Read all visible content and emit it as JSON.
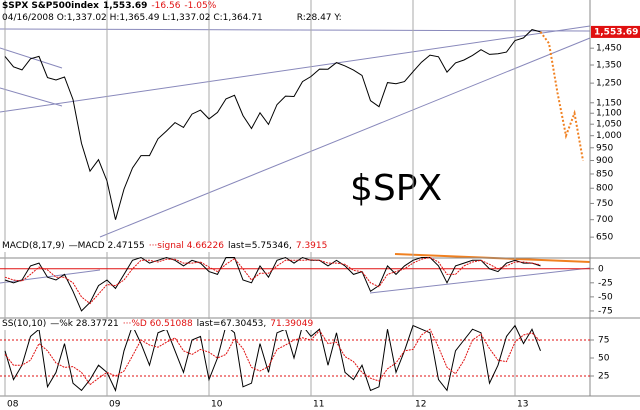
{
  "header": {
    "symbol": "$SPX S&P500index",
    "last": "1,553.69",
    "change": "-16.56",
    "pct": "-1.05%",
    "bar_info": "04/16/2008 O:1,337.02 H:1,365.49 L:1,337.02 C:1,364.71",
    "extra": "R:28.47 Y:"
  },
  "chart_data": {
    "type": "stock",
    "annotation": "$SPX",
    "log_scale": true,
    "categories": [
      "08",
      null,
      null,
      null,
      null,
      null,
      null,
      null,
      null,
      null,
      null,
      null,
      "09",
      null,
      null,
      null,
      null,
      null,
      null,
      null,
      null,
      null,
      null,
      null,
      "10",
      null,
      null,
      null,
      null,
      null,
      null,
      null,
      null,
      null,
      null,
      null,
      "11",
      null,
      null,
      null,
      null,
      null,
      null,
      null,
      null,
      null,
      null,
      null,
      "12",
      null,
      null,
      null,
      null,
      null,
      null,
      null,
      null,
      null,
      null,
      null,
      "13",
      null,
      null,
      null,
      null,
      null,
      null,
      null,
      null
    ],
    "ylim": [
      600,
      1600
    ],
    "yticks": [
      650,
      700,
      750,
      800,
      850,
      900,
      950,
      {
        "value": 1000,
        "label": "1,000"
      },
      {
        "value": 1050,
        "label": "1,050"
      },
      {
        "value": 1100,
        "label": "1,100"
      },
      {
        "value": 1150,
        "label": "1,150"
      },
      {
        "value": 1250,
        "label": "1,250"
      },
      {
        "value": 1350,
        "label": "1,350"
      },
      {
        "value": 1450,
        "label": "1,450"
      }
    ],
    "last_tick": {
      "value": 1553.69,
      "label": "1,553.69",
      "color": "#e01010"
    },
    "series": [
      {
        "name": "$SPX",
        "color": "#000000",
        "values": [
          1400,
          1340,
          1322,
          1386,
          1400,
          1280,
          1267,
          1283,
          1166,
          968,
          860,
          903,
          825,
          700,
          797,
          872,
          919,
          919,
          987,
          1020,
          1057,
          1036,
          1096,
          1115,
          1074,
          1104,
          1169,
          1187,
          1089,
          1031,
          1102,
          1049,
          1141,
          1183,
          1181,
          1258,
          1286,
          1327,
          1326,
          1364,
          1345,
          1321,
          1292,
          1160,
          1131,
          1253,
          1247,
          1258,
          1312,
          1366,
          1408,
          1398,
          1310,
          1362,
          1379,
          1406,
          1441,
          1412,
          1416,
          1426,
          1498,
          1515,
          1569,
          1553.69,
          null,
          null,
          null,
          null,
          null
        ]
      },
      {
        "name": "projection",
        "color": "#f08020",
        "values": [
          null,
          null,
          null,
          null,
          null,
          null,
          null,
          null,
          null,
          null,
          null,
          null,
          null,
          null,
          null,
          null,
          null,
          null,
          null,
          null,
          null,
          null,
          null,
          null,
          null,
          null,
          null,
          null,
          null,
          null,
          null,
          null,
          null,
          null,
          null,
          null,
          null,
          null,
          null,
          null,
          null,
          null,
          null,
          null,
          null,
          null,
          null,
          null,
          null,
          null,
          null,
          null,
          null,
          null,
          null,
          null,
          null,
          null,
          null,
          null,
          null,
          null,
          null,
          1553.69,
          1480,
          1200,
          1000,
          1100,
          900
        ]
      }
    ],
    "panels": [
      {
        "title": "MACD(8,17,9)",
        "last_label": "last=5.75346,",
        "last_label2": "7.3915",
        "ylim": [
          -84,
          44
        ],
        "yticks": [
          0,
          -25,
          -50,
          -75
        ],
        "ref_line": 0,
        "ref_color": "#e01010",
        "series": [
          {
            "name": "—MACD 2.47155",
            "color": "#000000",
            "values": [
              -20,
              -25,
              -20,
              5,
              10,
              -15,
              -20,
              -10,
              -40,
              -75,
              -60,
              -30,
              -20,
              -35,
              -10,
              15,
              20,
              10,
              15,
              20,
              15,
              5,
              15,
              10,
              -5,
              -10,
              20,
              20,
              -20,
              -25,
              5,
              -15,
              15,
              20,
              10,
              20,
              15,
              15,
              5,
              15,
              5,
              -10,
              -5,
              -40,
              -30,
              5,
              -10,
              5,
              15,
              20,
              20,
              5,
              -25,
              5,
              10,
              15,
              15,
              0,
              -5,
              10,
              15,
              10,
              10,
              5,
              null,
              null,
              null,
              null,
              null
            ]
          },
          {
            "name": "···signal 4.66226",
            "color": "#e01010",
            "values": [
              -15,
              -20,
              -22,
              -10,
              3,
              -2,
              -15,
              -15,
              -25,
              -50,
              -62,
              -45,
              -28,
              -30,
              -20,
              0,
              15,
              15,
              12,
              17,
              17,
              10,
              10,
              12,
              3,
              -5,
              8,
              18,
              0,
              -20,
              -8,
              -8,
              5,
              15,
              15,
              15,
              16,
              15,
              10,
              10,
              8,
              -3,
              -5,
              -25,
              -32,
              -10,
              -5,
              0,
              10,
              17,
              20,
              12,
              -10,
              -10,
              5,
              12,
              15,
              8,
              0,
              5,
              12,
              12,
              10,
              7,
              null,
              null,
              null,
              null,
              null
            ]
          }
        ]
      },
      {
        "title": "SS(10,10)",
        "last_label": "last=67.30453,",
        "last_label2": "71.39049",
        "ylim": [
          0,
          100
        ],
        "yticks": [
          75,
          50,
          25
        ],
        "ref_lines": [
          75,
          25
        ],
        "ref_color": "#e01010",
        "series": [
          {
            "name": "—%k 28.37721",
            "color": "#000000",
            "values": [
              60,
              20,
              40,
              80,
              90,
              10,
              30,
              70,
              15,
              5,
              20,
              40,
              30,
              5,
              60,
              95,
              70,
              40,
              85,
              90,
              60,
              30,
              75,
              80,
              20,
              50,
              95,
              85,
              10,
              15,
              70,
              30,
              85,
              90,
              50,
              95,
              80,
              90,
              40,
              85,
              30,
              20,
              40,
              5,
              10,
              90,
              30,
              60,
              95,
              90,
              85,
              20,
              5,
              60,
              75,
              90,
              85,
              15,
              40,
              80,
              95,
              70,
              90,
              60,
              null,
              null,
              null,
              null,
              null
            ]
          },
          {
            "name": "···%D 60.51088",
            "color": "#e01010",
            "values": [
              55,
              40,
              40,
              47,
              70,
              60,
              43,
              37,
              38,
              30,
              13,
              22,
              30,
              25,
              32,
              53,
              75,
              68,
              65,
              72,
              78,
              60,
              55,
              62,
              58,
              50,
              55,
              77,
              63,
              37,
              32,
              38,
              62,
              68,
              75,
              78,
              75,
              88,
              70,
              72,
              52,
              45,
              30,
              22,
              18,
              35,
              43,
              60,
              62,
              82,
              90,
              65,
              37,
              28,
              47,
              75,
              83,
              63,
              47,
              45,
              72,
              82,
              85,
              73,
              null,
              null,
              null,
              null,
              null
            ]
          }
        ]
      }
    ]
  }
}
